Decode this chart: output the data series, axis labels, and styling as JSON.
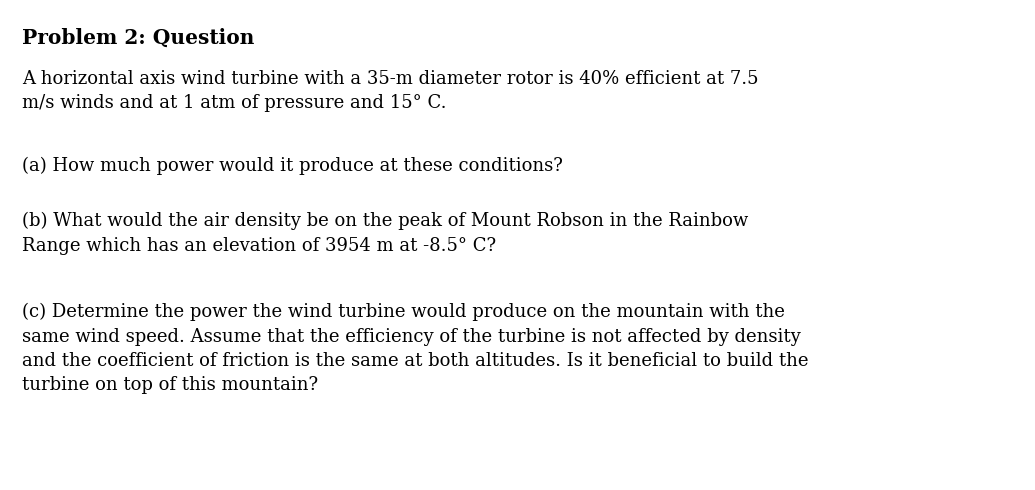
{
  "title": "Problem 2: Question",
  "background_color": "#ffffff",
  "text_color": "#000000",
  "title_fontsize": 14.5,
  "body_fontsize": 13.0,
  "title_font_weight": "bold",
  "title_font_family": "DejaVu Serif",
  "body_font_family": "DejaVu Serif",
  "paragraph1": "A horizontal axis wind turbine with a 35-m diameter rotor is 40% efficient at 7.5\nm/s winds and at 1 atm of pressure and 15° C.",
  "paragraph2": "(a) How much power would it produce at these conditions?",
  "paragraph3": "(b) What would the air density be on the peak of Mount Robson in the Rainbow\nRange which has an elevation of 3954 m at -8.5° C?",
  "paragraph4": "(c) Determine the power the wind turbine would produce on the mountain with the\nsame wind speed. Assume that the efficiency of the turbine is not affected by density\nand the coefficient of friction is the same at both altitudes. Is it beneficial to build the\nturbine on top of this mountain?"
}
